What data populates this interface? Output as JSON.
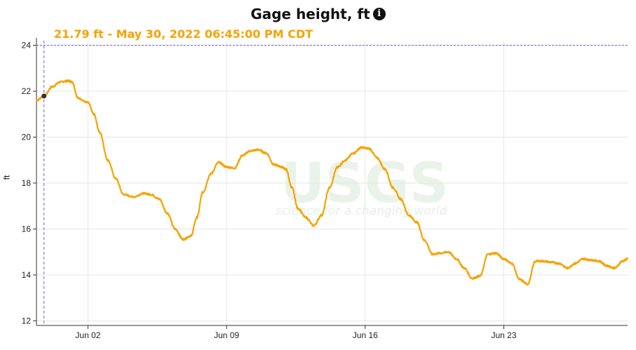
{
  "header": {
    "title": "Gage height, ft",
    "info_icon": "info-icon"
  },
  "cursor_readout": {
    "text": "21.79 ft - May 30, 2022 06:45:00 PM CDT"
  },
  "colors": {
    "series": "#f5a300",
    "cursor": "#6b63c8",
    "grid": "#e6e6e6",
    "watermark": "#d8ead8"
  },
  "watermark": {
    "logo": "USGS",
    "tagline": "science for a changing world"
  },
  "chart_data": {
    "type": "line",
    "title": "Gage height, ft",
    "xlabel": "",
    "ylabel": "ft",
    "x_unit": "days since start of record (May 30, 2022 00:00 CDT)",
    "xlim": [
      0.4,
      30.25
    ],
    "ylim": [
      11.8,
      24.2
    ],
    "grid": true,
    "x_ticks": [
      {
        "label": "Jun 02",
        "x": 3
      },
      {
        "label": "Jun 09",
        "x": 10
      },
      {
        "label": "Jun 16",
        "x": 17
      },
      {
        "label": "Jun 23",
        "x": 24
      }
    ],
    "y_ticks": [
      12,
      14,
      16,
      18,
      20,
      22,
      24
    ],
    "cursor": {
      "x": 0.78,
      "y": 21.79
    },
    "series": [
      {
        "name": "Gage height",
        "x": [
          0.4,
          0.78,
          1.2,
          1.6,
          2.0,
          2.2,
          2.5,
          3.0,
          3.3,
          3.6,
          4.0,
          4.4,
          4.8,
          5.3,
          5.8,
          6.2,
          6.6,
          7.0,
          7.4,
          7.8,
          8.2,
          8.5,
          8.8,
          9.2,
          9.6,
          10.0,
          10.4,
          10.8,
          11.2,
          11.6,
          12.0,
          12.4,
          12.8,
          13.0,
          13.3,
          13.6,
          14.0,
          14.4,
          14.8,
          15.2,
          15.6,
          16.0,
          16.4,
          16.8,
          17.2,
          17.6,
          18.0,
          18.4,
          18.8,
          19.2,
          19.6,
          20.0,
          20.4,
          20.8,
          21.2,
          21.6,
          22.0,
          22.4,
          22.8,
          23.2,
          23.6,
          24.0,
          24.4,
          24.8,
          25.2,
          25.6,
          26.0,
          26.4,
          26.8,
          27.2,
          27.6,
          28.0,
          28.4,
          28.8,
          29.2,
          29.6,
          30.0,
          30.25
        ],
        "y": [
          21.6,
          21.79,
          22.2,
          22.4,
          22.45,
          22.4,
          21.7,
          21.5,
          21.0,
          20.2,
          19.0,
          18.2,
          17.5,
          17.4,
          17.55,
          17.5,
          17.3,
          16.7,
          16.0,
          15.55,
          15.7,
          16.5,
          17.6,
          18.4,
          18.9,
          18.7,
          18.65,
          19.2,
          19.4,
          19.45,
          19.3,
          18.8,
          18.7,
          18.6,
          17.8,
          16.9,
          16.5,
          16.15,
          16.6,
          17.8,
          18.7,
          19.0,
          19.3,
          19.55,
          19.5,
          19.1,
          18.6,
          17.8,
          17.3,
          16.6,
          16.3,
          15.5,
          14.9,
          14.95,
          15.0,
          14.7,
          14.3,
          13.85,
          13.95,
          14.9,
          14.95,
          14.7,
          14.5,
          13.8,
          13.6,
          14.6,
          14.6,
          14.55,
          14.5,
          14.3,
          14.5,
          14.7,
          14.65,
          14.6,
          14.4,
          14.3,
          14.6,
          14.7
        ]
      }
    ]
  }
}
